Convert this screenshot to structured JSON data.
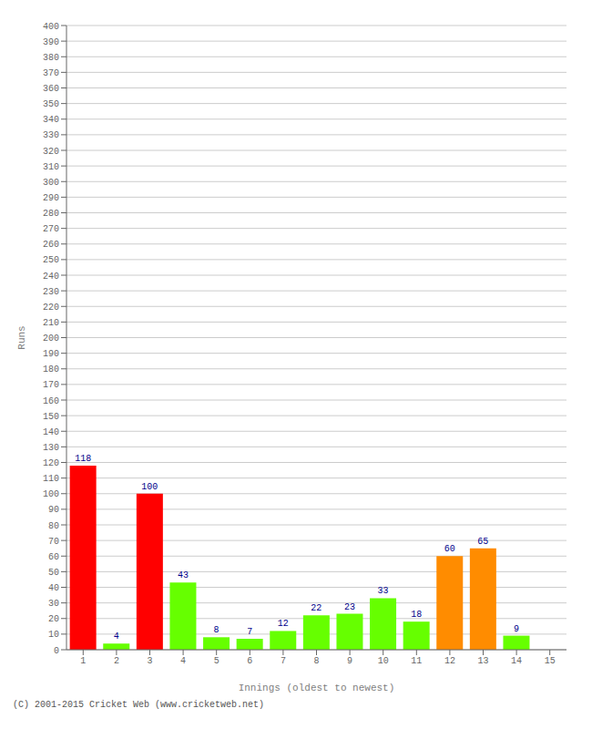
{
  "chart_data": {
    "type": "bar",
    "xlabel": "Innings (oldest to newest)",
    "ylabel": "Runs",
    "categories": [
      "1",
      "2",
      "3",
      "4",
      "5",
      "6",
      "7",
      "8",
      "9",
      "10",
      "11",
      "12",
      "13",
      "14",
      "15"
    ],
    "values": [
      118,
      4,
      100,
      43,
      8,
      7,
      12,
      22,
      23,
      33,
      18,
      60,
      65,
      9,
      0
    ],
    "colors": [
      "#ff0000",
      "#66ff00",
      "#ff0000",
      "#66ff00",
      "#66ff00",
      "#66ff00",
      "#66ff00",
      "#66ff00",
      "#66ff00",
      "#66ff00",
      "#66ff00",
      "#ff8c00",
      "#ff8c00",
      "#66ff00",
      "#66ff00"
    ],
    "ylim": [
      0,
      400
    ],
    "yticks": [
      0,
      10,
      20,
      30,
      40,
      50,
      60,
      70,
      80,
      90,
      100,
      110,
      120,
      130,
      140,
      150,
      160,
      170,
      180,
      190,
      200,
      210,
      220,
      230,
      240,
      250,
      260,
      270,
      280,
      290,
      300,
      310,
      320,
      330,
      340,
      350,
      360,
      370,
      380,
      390,
      400
    ],
    "grid": true,
    "data_labels": true,
    "annotations": [
      "(C) 2001-2015 Cricket Web (www.cricketweb.net)"
    ]
  }
}
